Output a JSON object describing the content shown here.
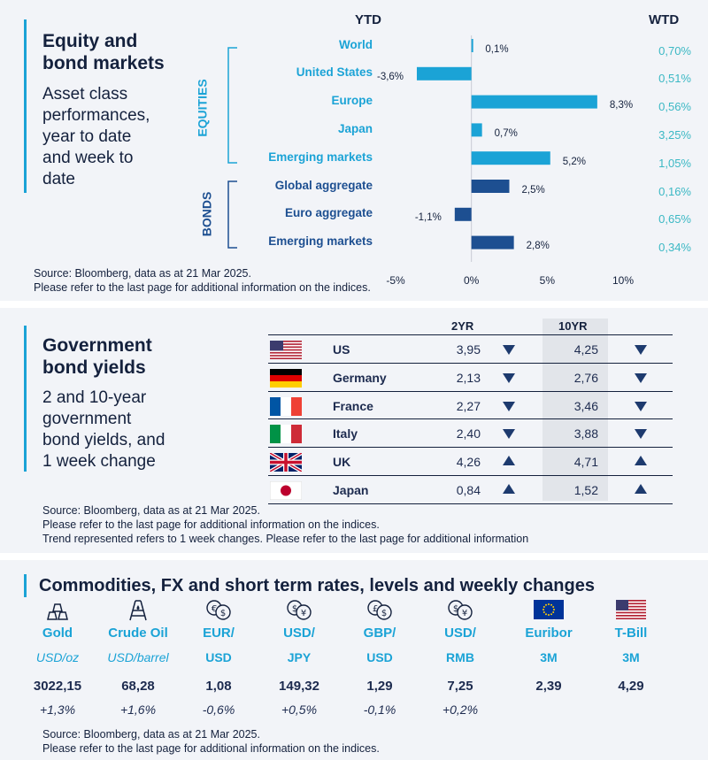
{
  "panel1": {
    "title_line1": "Equity and",
    "title_line2": "bond markets",
    "sub_line1": "Asset class",
    "sub_line2": "performances,",
    "sub_line3": "year to date",
    "sub_line4": "and week to",
    "sub_line5": "date",
    "header_ytd": "YTD",
    "header_wtd": "WTD",
    "group_equities": "EQUITIES",
    "group_bonds": "BONDS",
    "source_line1": "Source: Bloomberg, data as at 21 Mar 2025.",
    "source_line2": "Please refer to the last page for additional information on the indices."
  },
  "chart_data": {
    "type": "bar",
    "orientation": "horizontal",
    "title": "Equity and bond markets - Asset class performances, year to date and week to date",
    "categories": [
      "World",
      "United States",
      "Europe",
      "Japan",
      "Emerging  markets",
      "Global aggregate",
      "Euro aggregate",
      "Emerging  markets"
    ],
    "groups": [
      "equity",
      "equity",
      "equity",
      "equity",
      "equity",
      "bond",
      "bond",
      "bond"
    ],
    "values": [
      0.1,
      -3.6,
      8.3,
      0.7,
      5.2,
      2.5,
      -1.1,
      2.8
    ],
    "value_labels": [
      "0,1%",
      "-3,6%",
      "8,3%",
      "0,7%",
      "5,2%",
      "2,5%",
      "-1,1%",
      "2,8%"
    ],
    "wtd_labels": [
      "0,70%",
      "0,51%",
      "0,56%",
      "3,25%",
      "1,05%",
      "0,16%",
      "0,65%",
      "0,34%"
    ],
    "xlim": [
      -5,
      10
    ],
    "xticks": [
      -5,
      0,
      5,
      10
    ],
    "xtick_labels": [
      "-5%",
      "0%",
      "5%",
      "10%"
    ],
    "colors": {
      "equity": "#1ba3d6",
      "bond": "#1d4f91"
    }
  },
  "panel2": {
    "title_line1": "Government",
    "title_line2": "bond yields",
    "sub_line1": "2 and 10-year",
    "sub_line2": "government",
    "sub_line3": "bond yields, and",
    "sub_line4": "1 week change",
    "col_2yr": "2YR",
    "col_10yr": "10YR",
    "rows": [
      {
        "country": "US",
        "y2": "3,95",
        "t2": "down",
        "y10": "4,25",
        "t10": "down"
      },
      {
        "country": "Germany",
        "y2": "2,13",
        "t2": "down",
        "y10": "2,76",
        "t10": "down"
      },
      {
        "country": "France",
        "y2": "2,27",
        "t2": "down",
        "y10": "3,46",
        "t10": "down"
      },
      {
        "country": "Italy",
        "y2": "2,40",
        "t2": "down",
        "y10": "3,88",
        "t10": "down"
      },
      {
        "country": "UK",
        "y2": "4,26",
        "t2": "up",
        "y10": "4,71",
        "t10": "up"
      },
      {
        "country": "Japan",
        "y2": "0,84",
        "t2": "up",
        "y10": "1,52",
        "t10": "up"
      }
    ],
    "source_line1": "Source: Bloomberg, data as at 21 Mar 2025.",
    "source_line2": "Please refer to the last page for additional information on the indices.",
    "source_line3": "Trend represented refers to 1 week changes. Please refer to the last page for additional information"
  },
  "panel3": {
    "title": "Commodities, FX and short term rates, levels and weekly changes",
    "items": [
      {
        "name": "Gold",
        "unit": "USD/oz",
        "level": "3022,15",
        "change": "+1,3%"
      },
      {
        "name": "Crude Oil",
        "unit": "USD/barrel",
        "level": "68,28",
        "change": "+1,6%"
      },
      {
        "name": "EUR/",
        "unit": "USD",
        "level": "1,08",
        "change": "-0,6%"
      },
      {
        "name": "USD/",
        "unit": "JPY",
        "level": "149,32",
        "change": "+0,5%"
      },
      {
        "name": "GBP/",
        "unit": "USD",
        "level": "1,29",
        "change": "-0,1%"
      },
      {
        "name": "USD/",
        "unit": "RMB",
        "level": "7,25",
        "change": "+0,2%"
      },
      {
        "name": "Euribor",
        "unit": "3M",
        "level": "2,39",
        "change": ""
      },
      {
        "name": "T-Bill",
        "unit": "3M",
        "level": "4,29",
        "change": ""
      }
    ],
    "currency_symbols": [
      "€$",
      "$¥",
      "£$",
      "$¥"
    ],
    "source_line1": "Source: Bloomberg, data as at 21 Mar 2025.",
    "source_line2": "Please refer to the last page for additional information on the indices."
  }
}
